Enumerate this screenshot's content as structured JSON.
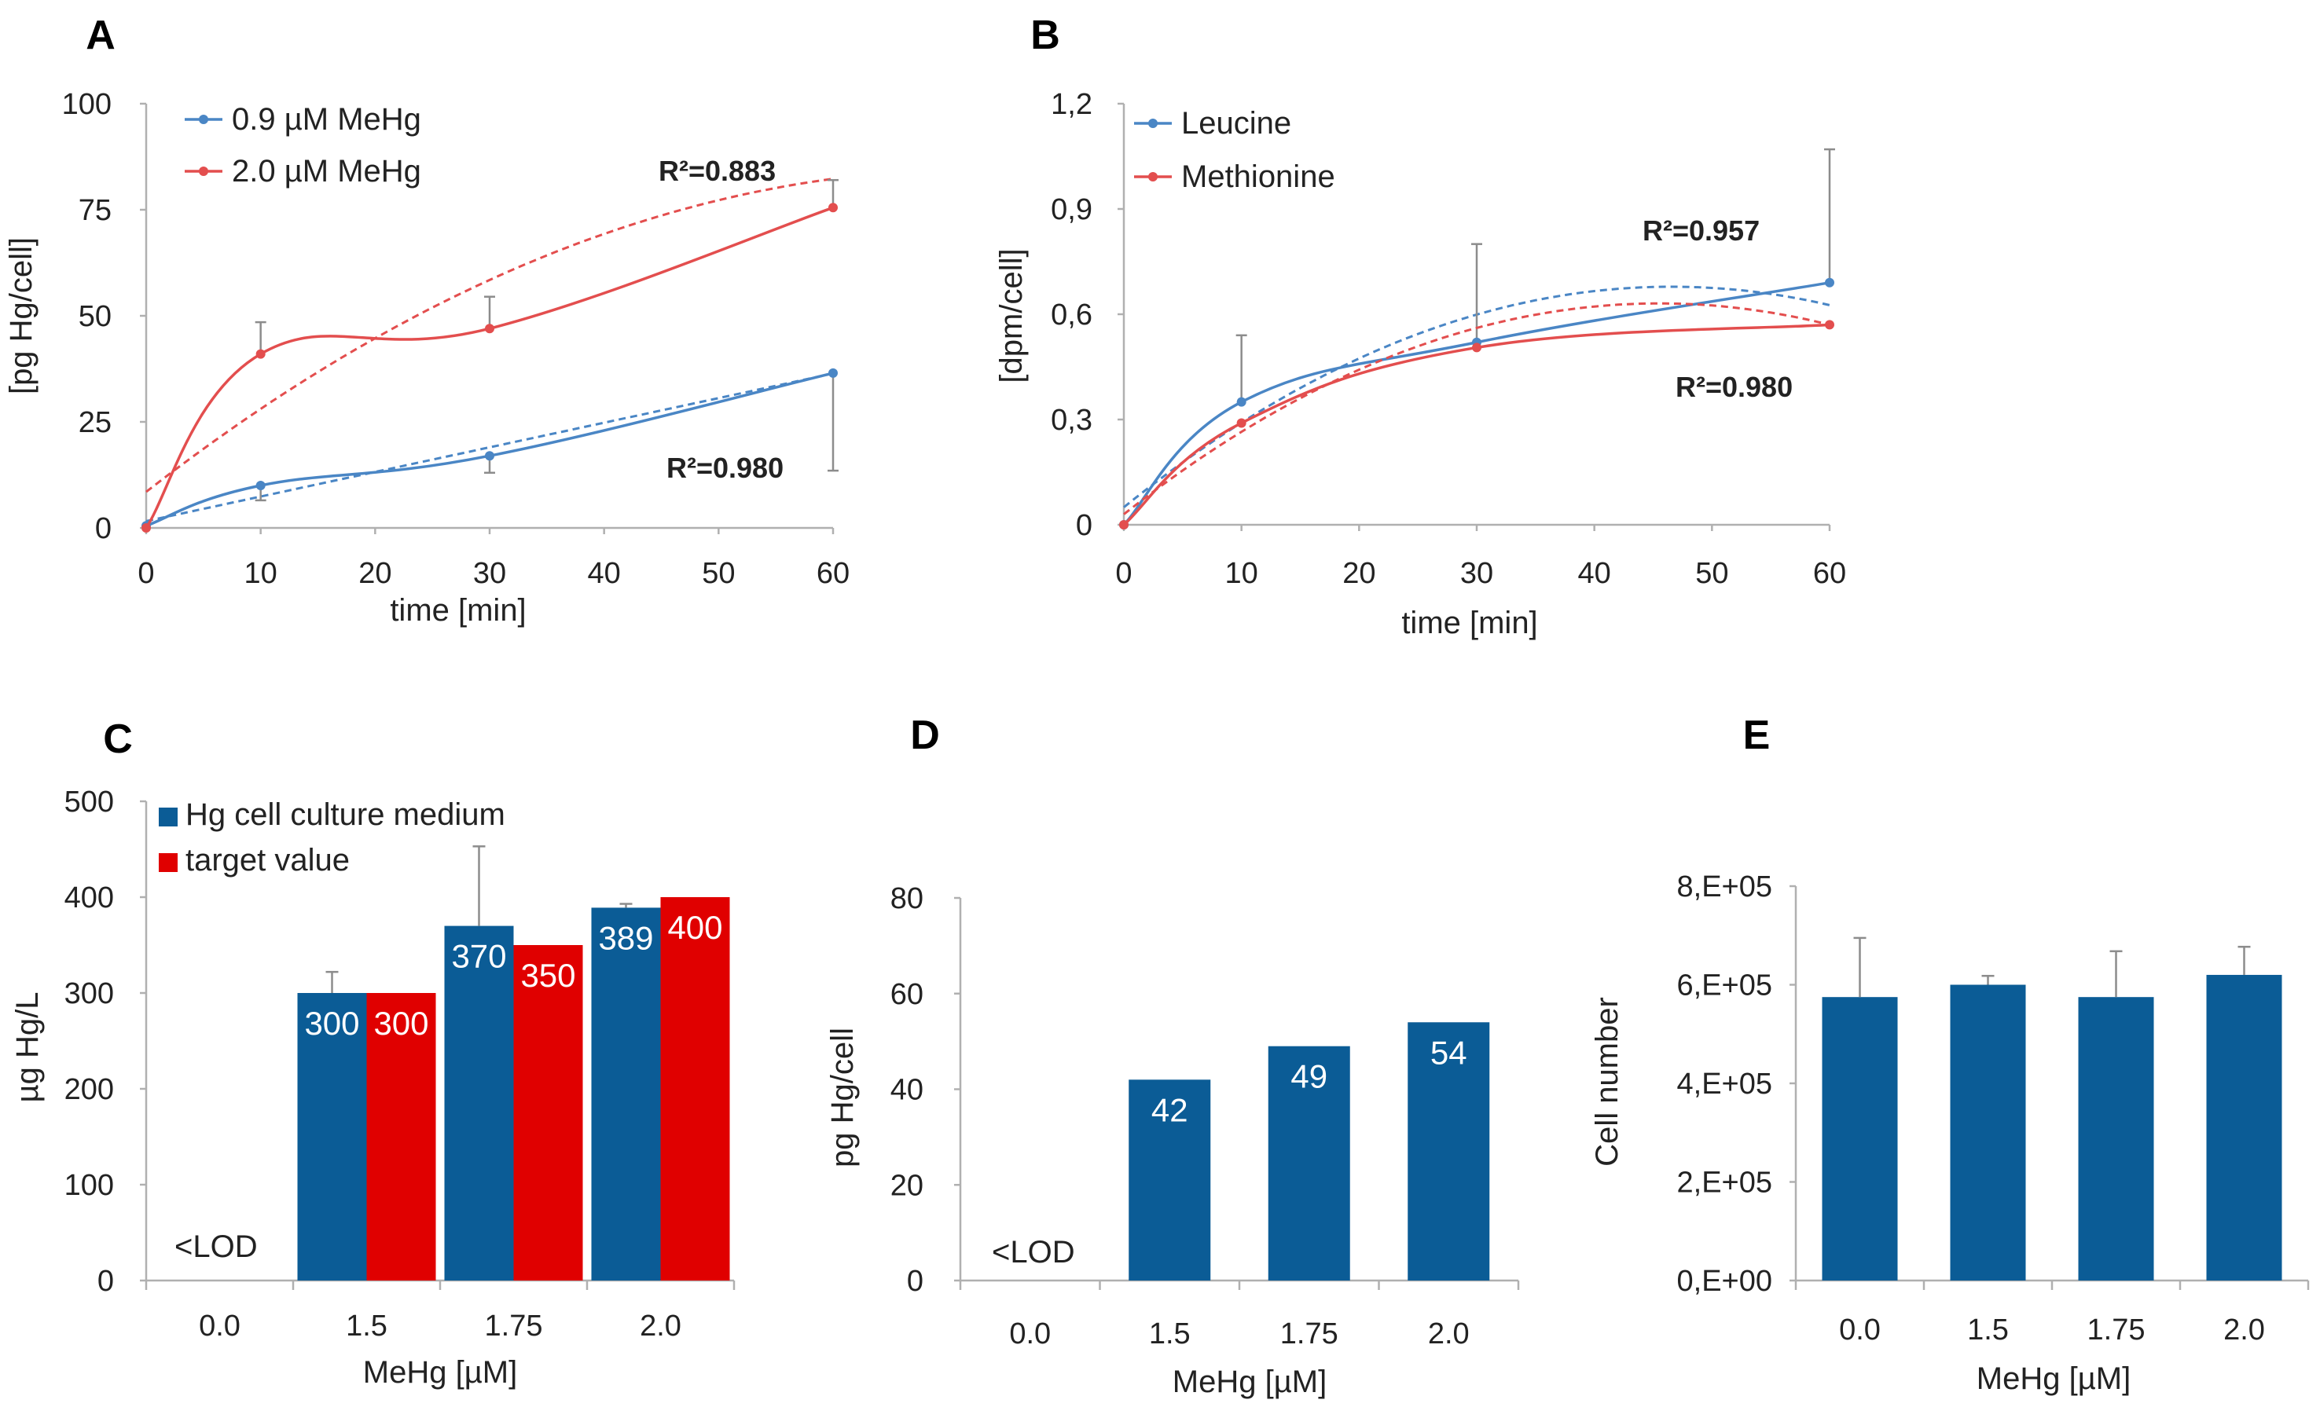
{
  "colors": {
    "blue": "#4a86c5",
    "red": "#e34e4e",
    "bar_blue": "#0b5c96",
    "bar_red": "#e00000",
    "axis": "#b0b0b0"
  },
  "chart_data": [
    {
      "id": "A",
      "panel_label": "A",
      "type": "line",
      "title": "",
      "xlabel": "time [min]",
      "ylabel": "[pg Hg/cell]",
      "xlim": [
        0,
        60
      ],
      "ylim": [
        0,
        100
      ],
      "xticks": [
        0,
        10,
        20,
        30,
        40,
        50,
        60
      ],
      "xtick_labels": [
        "0",
        "10",
        "20",
        "30",
        "40",
        "50",
        "60"
      ],
      "yticks": [
        0,
        25,
        50,
        75,
        100
      ],
      "ytick_labels": [
        "0",
        "25",
        "50",
        "75",
        "100"
      ],
      "legend_position": "top-left",
      "series": [
        {
          "name": "0.9 µM MeHg",
          "color": "#4a86c5",
          "x": [
            0,
            10,
            30,
            60
          ],
          "y": [
            0.5,
            10,
            17,
            36.5
          ],
          "err_plus": [
            0,
            0,
            0,
            0
          ],
          "err_minus": [
            0,
            3.5,
            4,
            23
          ],
          "trend": [
            1.6,
            0.58,
            0
          ]
        },
        {
          "name": "2.0 µM MeHg",
          "color": "#e34e4e",
          "x": [
            0,
            10,
            30,
            60
          ],
          "y": [
            0,
            41,
            47,
            75.5
          ],
          "err_plus": [
            0,
            7.5,
            7.5,
            6.5
          ],
          "err_minus": [
            0,
            0,
            0,
            0
          ],
          "trend": [
            8.5,
            2.1,
            -0.0145
          ]
        }
      ],
      "annotations": [
        {
          "text": "R²=0.883"
        },
        {
          "text": "R²=0.980"
        }
      ]
    },
    {
      "id": "B",
      "panel_label": "B",
      "type": "line",
      "title": "",
      "xlabel": "time [min]",
      "ylabel": "[dpm/cell]",
      "xlim": [
        0,
        60
      ],
      "ylim": [
        0,
        1.2
      ],
      "xticks": [
        0,
        10,
        20,
        30,
        40,
        50,
        60
      ],
      "xtick_labels": [
        "0",
        "10",
        "20",
        "30",
        "40",
        "50",
        "60"
      ],
      "yticks": [
        0,
        0.3,
        0.6,
        0.9,
        1.2
      ],
      "ytick_labels": [
        "0",
        "0,3",
        "0,6",
        "0,9",
        "1,2"
      ],
      "legend_position": "top-left",
      "series": [
        {
          "name": "Leucine",
          "color": "#4a86c5",
          "x": [
            0,
            10,
            30,
            60
          ],
          "y": [
            0,
            0.35,
            0.52,
            0.69
          ],
          "err_plus": [
            0,
            0.19,
            0.28,
            0.38
          ],
          "err_minus": [
            0,
            0,
            0,
            0
          ],
          "trend": [
            0.05,
            0.027,
            -0.00029
          ]
        },
        {
          "name": "Methionine",
          "color": "#e34e4e",
          "x": [
            0,
            10,
            30,
            60
          ],
          "y": [
            0,
            0.29,
            0.505,
            0.57
          ],
          "err_plus": [
            0,
            0,
            0,
            0
          ],
          "err_minus": [
            0,
            0,
            0,
            0
          ],
          "trend": [
            0.03,
            0.0264,
            -0.00029
          ]
        }
      ],
      "annotations": [
        {
          "text": "R²=0.957"
        },
        {
          "text": "R²=0.980"
        }
      ]
    },
    {
      "id": "C",
      "panel_label": "C",
      "type": "bar",
      "title": "",
      "xlabel": "MeHg [µM]",
      "ylabel": "µg Hg/L",
      "categories": [
        "0.0",
        "1.5",
        "1.75",
        "2.0"
      ],
      "ylim": [
        0,
        500
      ],
      "yticks": [
        0,
        100,
        200,
        300,
        400,
        500
      ],
      "ytick_labels": [
        "0",
        "100",
        "200",
        "300",
        "400",
        "500"
      ],
      "legend_position": "top-left",
      "series": [
        {
          "name": "Hg cell culture medium",
          "color": "#0b5c96",
          "values": [
            null,
            300,
            370,
            389
          ],
          "labels": [
            "",
            "300",
            "370",
            "389"
          ],
          "err": [
            0,
            22,
            83,
            4
          ]
        },
        {
          "name": "target value",
          "color": "#e00000",
          "values": [
            null,
            300,
            350,
            400
          ],
          "labels": [
            "",
            "300",
            "350",
            "400"
          ],
          "err": [
            0,
            0,
            0,
            0
          ]
        }
      ],
      "annotations": [
        {
          "text": "<LOD",
          "category": "0.0"
        }
      ]
    },
    {
      "id": "D",
      "panel_label": "D",
      "type": "bar",
      "title": "",
      "xlabel": "MeHg [µM]",
      "ylabel": "pg Hg/cell",
      "categories": [
        "0.0",
        "1.5",
        "1.75",
        "2.0"
      ],
      "ylim": [
        0,
        80
      ],
      "yticks": [
        0,
        20,
        40,
        60,
        80
      ],
      "ytick_labels": [
        "0",
        "20",
        "40",
        "60",
        "80"
      ],
      "series": [
        {
          "name": "pg Hg/cell",
          "color": "#0b5c96",
          "values": [
            null,
            42,
            49,
            54
          ],
          "labels": [
            "",
            "42",
            "49",
            "54"
          ],
          "err": [
            0,
            0,
            0,
            0
          ]
        }
      ],
      "annotations": [
        {
          "text": "<LOD",
          "category": "0.0"
        }
      ]
    },
    {
      "id": "E",
      "panel_label": "E",
      "type": "bar",
      "title": "",
      "xlabel": "MeHg [µM]",
      "ylabel": "Cell number",
      "categories": [
        "0.0",
        "1.5",
        "1.75",
        "2.0"
      ],
      "ylim": [
        0,
        800000
      ],
      "yticks": [
        0,
        200000,
        400000,
        600000,
        800000
      ],
      "ytick_labels": [
        "0,E+00",
        "2,E+05",
        "4,E+05",
        "6,E+05",
        "8,E+05"
      ],
      "series": [
        {
          "name": "Cell number",
          "color": "#0b5c96",
          "values": [
            575000,
            600000,
            575000,
            620000
          ],
          "labels": [
            "",
            "",
            "",
            ""
          ],
          "err": [
            120000,
            18000,
            93000,
            57000
          ]
        }
      ],
      "annotations": []
    }
  ]
}
